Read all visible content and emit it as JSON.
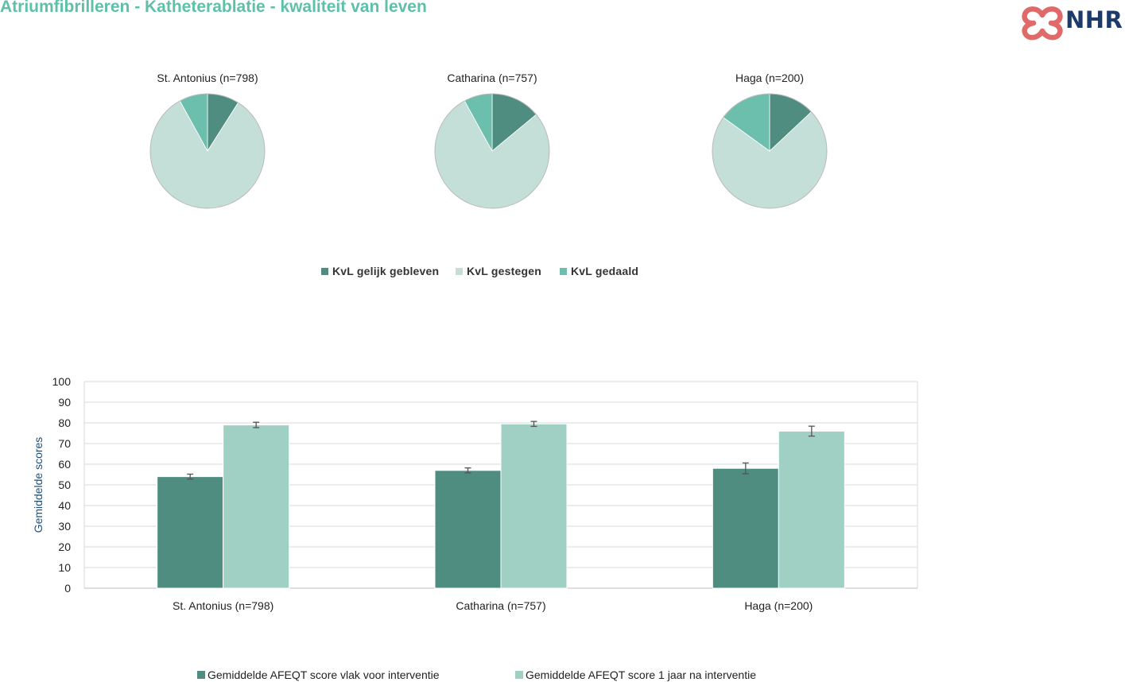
{
  "page": {
    "title": "Atriumfibrilleren - Katheterablatie - kwaliteit van leven"
  },
  "logo": {
    "text": "NHR",
    "heart_color": "#e06a6a",
    "text_color": "#1d3b6a"
  },
  "chart_data": [
    {
      "type": "pie",
      "legend_position": "bottom",
      "categories": [
        "KvL gelijk gebleven",
        "KvL gestegen",
        "KvL gedaald"
      ],
      "colors": [
        "#4e8d7f",
        "#c3dfd8",
        "#6dbfad"
      ],
      "pies": [
        {
          "title": "St. Antonius (n=798)",
          "values": [
            9,
            83,
            8
          ]
        },
        {
          "title": "Catharina (n=757)",
          "values": [
            14,
            78,
            8
          ]
        },
        {
          "title": "Haga (n=200)",
          "values": [
            13,
            72,
            15
          ]
        }
      ]
    },
    {
      "type": "bar",
      "categories": [
        "St. Antonius (n=798)",
        "Catharina (n=757)",
        "Haga (n=200)"
      ],
      "ylabel": "Gemiddelde scores",
      "xlabel": "",
      "ylim": [
        0,
        100
      ],
      "yticks": [
        0,
        10,
        20,
        30,
        40,
        50,
        60,
        70,
        80,
        90,
        100
      ],
      "grid": true,
      "legend_position": "bottom",
      "series": [
        {
          "name": "Gemiddelde AFEQT score vlak voor interventie",
          "color": "#4e8d7f",
          "values": [
            54,
            57,
            58
          ],
          "error": [
            1.2,
            1.2,
            2.6
          ]
        },
        {
          "name": "Gemiddelde AFEQT score 1 jaar na interventie",
          "color": "#a0cfc3",
          "values": [
            79,
            79.5,
            76
          ],
          "error": [
            1.3,
            1.2,
            2.4
          ]
        }
      ]
    }
  ]
}
